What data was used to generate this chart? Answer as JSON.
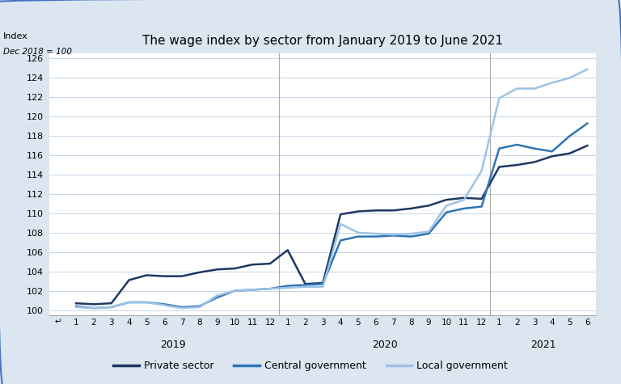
{
  "title": "The wage index by sector from January 2019 to June 2021",
  "ylabel_top": "Index",
  "ylabel_bottom": "Dec 2018 = 100",
  "background_color": "#dce6f1",
  "plot_background_color": "#ffffff",
  "ylim": [
    99.5,
    126.5
  ],
  "yticks": [
    100,
    102,
    104,
    106,
    108,
    110,
    112,
    114,
    116,
    118,
    120,
    122,
    124,
    126
  ],
  "private_sector": [
    100.7,
    100.6,
    100.7,
    103.1,
    103.6,
    103.5,
    103.5,
    103.9,
    104.2,
    104.3,
    104.7,
    104.8,
    106.2,
    102.7,
    102.8,
    109.9,
    110.2,
    110.3,
    110.3,
    110.5,
    110.8,
    111.4,
    111.6,
    111.5,
    114.8,
    115.0,
    115.3,
    115.9,
    116.2,
    117.0
  ],
  "central_government": [
    100.4,
    100.2,
    100.3,
    100.8,
    100.8,
    100.6,
    100.3,
    100.4,
    101.3,
    102.0,
    102.1,
    102.2,
    102.5,
    102.6,
    102.7,
    107.2,
    107.6,
    107.6,
    107.7,
    107.6,
    107.9,
    110.1,
    110.5,
    110.7,
    116.7,
    117.1,
    116.7,
    116.4,
    118.0,
    119.3
  ],
  "local_government": [
    100.3,
    100.2,
    100.3,
    100.8,
    100.8,
    100.5,
    100.2,
    100.3,
    101.5,
    102.0,
    102.1,
    102.2,
    102.3,
    102.4,
    102.4,
    108.9,
    108.0,
    107.9,
    107.8,
    107.9,
    108.1,
    110.8,
    111.4,
    114.4,
    121.9,
    122.9,
    122.9,
    123.5,
    124.0,
    124.9
  ],
  "private_color": "#1f3864",
  "central_color": "#2e75b6",
  "local_color": "#9dc3e6",
  "line_width": 1.8,
  "legend_labels": [
    "Private sector",
    "Central government",
    "Local government"
  ],
  "year_labels": [
    "2019",
    "2020",
    "2021"
  ],
  "border_color": "#4472c4"
}
